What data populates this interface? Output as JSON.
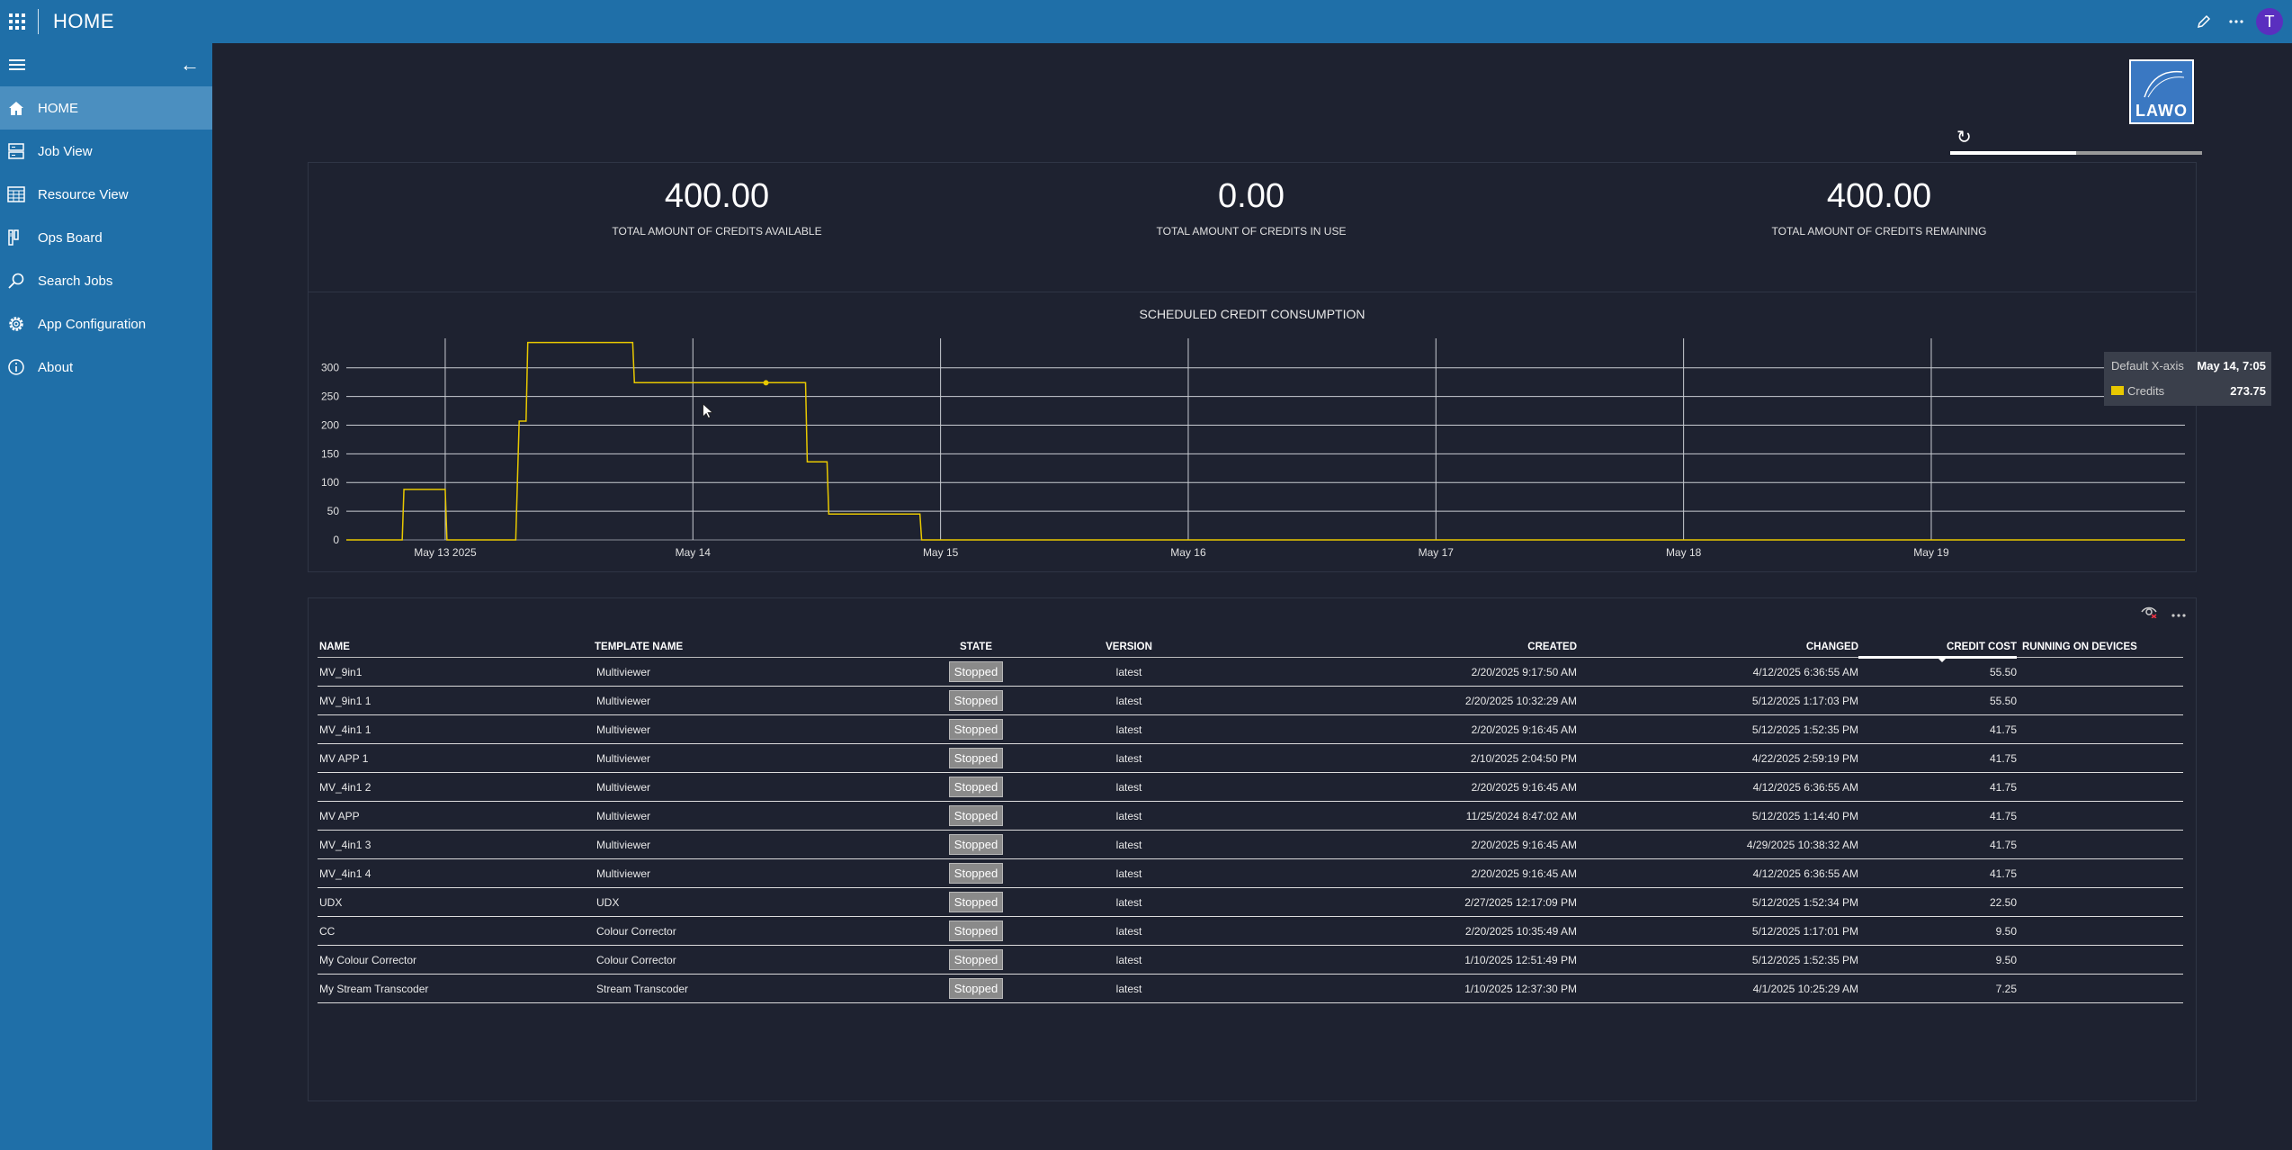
{
  "topbar": {
    "title": "HOME",
    "avatar_initial": "T"
  },
  "sidebar": {
    "items": [
      {
        "label": "HOME",
        "icon": "home-icon",
        "active": true
      },
      {
        "label": "Job View",
        "icon": "job-view-icon"
      },
      {
        "label": "Resource View",
        "icon": "calendar-grid-icon"
      },
      {
        "label": "Ops Board",
        "icon": "ops-board-icon"
      },
      {
        "label": "Search Jobs",
        "icon": "search-icon"
      },
      {
        "label": "App Configuration",
        "icon": "gear-icon"
      },
      {
        "label": "About",
        "icon": "info-icon"
      }
    ]
  },
  "brand": {
    "logo_text": "LAWO"
  },
  "loading_progress": 0.5,
  "kpis": [
    {
      "value": "400.00",
      "label": "TOTAL AMOUNT OF CREDITS AVAILABLE"
    },
    {
      "value": "0.00",
      "label": "TOTAL AMOUNT OF CREDITS IN USE"
    },
    {
      "value": "400.00",
      "label": "TOTAL AMOUNT OF CREDITS REMAINING"
    }
  ],
  "chart_data": {
    "type": "line",
    "title": "SCHEDULED CREDIT CONSUMPTION",
    "xlabel": "",
    "ylabel": "",
    "x_ticks": [
      "May 13 2025",
      "May 14",
      "May 15",
      "May 16",
      "May 17",
      "May 18",
      "May 19"
    ],
    "y_ticks": [
      0,
      50,
      100,
      150,
      200,
      250,
      300
    ],
    "xlim": [
      "2025-05-12 14:25",
      "2025-05-20 00:35"
    ],
    "ylim": [
      0,
      345
    ],
    "grid": true,
    "line_color": "#e8c800",
    "series": [
      {
        "name": "Credits",
        "x": [
          "2025-05-12 14:25",
          "2025-05-12 19:50",
          "2025-05-12 20:00",
          "2025-05-13 00:00",
          "2025-05-13 00:10",
          "2025-05-13 06:50",
          "2025-05-13 07:10",
          "2025-05-13 07:50",
          "2025-05-13 08:00",
          "2025-05-13 18:10",
          "2025-05-13 18:20",
          "2025-05-14 10:55",
          "2025-05-14 11:05",
          "2025-05-14 13:00",
          "2025-05-14 13:10",
          "2025-05-14 22:00",
          "2025-05-14 22:10",
          "2025-05-20 00:35"
        ],
        "y": [
          0,
          0,
          88,
          88,
          0,
          0,
          207,
          207,
          344,
          344,
          274,
          274,
          136,
          136,
          45,
          45,
          0,
          0
        ]
      }
    ],
    "hover_point": {
      "x": "2025-05-14 07:05",
      "y": 273.75
    },
    "tooltip": {
      "axis_label": "Default X-axis",
      "axis_value": "May 14, 7:05",
      "series_label": "Credits",
      "series_value": "273.75"
    }
  },
  "table": {
    "columns": [
      "NAME",
      "TEMPLATE NAME",
      "STATE",
      "VERSION",
      "CREATED",
      "CHANGED",
      "CREDIT COST",
      "RUNNING ON DEVICES"
    ],
    "sorted_by": "CREDIT COST",
    "rows": [
      {
        "name": "MV_9in1",
        "template": "Multiviewer",
        "state": "Stopped",
        "version": "latest",
        "created": "2/20/2025 9:17:50 AM",
        "changed": "4/12/2025 6:36:55 AM",
        "cost": "55.50",
        "devices": ""
      },
      {
        "name": "MV_9in1 1",
        "template": "Multiviewer",
        "state": "Stopped",
        "version": "latest",
        "created": "2/20/2025 10:32:29 AM",
        "changed": "5/12/2025 1:17:03 PM",
        "cost": "55.50",
        "devices": ""
      },
      {
        "name": "MV_4in1 1",
        "template": "Multiviewer",
        "state": "Stopped",
        "version": "latest",
        "created": "2/20/2025 9:16:45 AM",
        "changed": "5/12/2025 1:52:35 PM",
        "cost": "41.75",
        "devices": ""
      },
      {
        "name": "MV APP 1",
        "template": "Multiviewer",
        "state": "Stopped",
        "version": "latest",
        "created": "2/10/2025 2:04:50 PM",
        "changed": "4/22/2025 2:59:19 PM",
        "cost": "41.75",
        "devices": ""
      },
      {
        "name": "MV_4in1 2",
        "template": "Multiviewer",
        "state": "Stopped",
        "version": "latest",
        "created": "2/20/2025 9:16:45 AM",
        "changed": "4/12/2025 6:36:55 AM",
        "cost": "41.75",
        "devices": ""
      },
      {
        "name": "MV APP",
        "template": "Multiviewer",
        "state": "Stopped",
        "version": "latest",
        "created": "11/25/2024 8:47:02 AM",
        "changed": "5/12/2025 1:14:40 PM",
        "cost": "41.75",
        "devices": ""
      },
      {
        "name": "MV_4in1 3",
        "template": "Multiviewer",
        "state": "Stopped",
        "version": "latest",
        "created": "2/20/2025 9:16:45 AM",
        "changed": "4/29/2025 10:38:32 AM",
        "cost": "41.75",
        "devices": ""
      },
      {
        "name": "MV_4in1 4",
        "template": "Multiviewer",
        "state": "Stopped",
        "version": "latest",
        "created": "2/20/2025 9:16:45 AM",
        "changed": "4/12/2025 6:36:55 AM",
        "cost": "41.75",
        "devices": ""
      },
      {
        "name": "UDX",
        "template": "UDX",
        "state": "Stopped",
        "version": "latest",
        "created": "2/27/2025 12:17:09 PM",
        "changed": "5/12/2025 1:52:34 PM",
        "cost": "22.50",
        "devices": ""
      },
      {
        "name": "CC",
        "template": "Colour Corrector",
        "state": "Stopped",
        "version": "latest",
        "created": "2/20/2025 10:35:49 AM",
        "changed": "5/12/2025 1:17:01 PM",
        "cost": "9.50",
        "devices": ""
      },
      {
        "name": "My Colour Corrector",
        "template": "Colour Corrector",
        "state": "Stopped",
        "version": "latest",
        "created": "1/10/2025 12:51:49 PM",
        "changed": "5/12/2025 1:52:35 PM",
        "cost": "9.50",
        "devices": ""
      },
      {
        "name": "My Stream Transcoder",
        "template": "Stream Transcoder",
        "state": "Stopped",
        "version": "latest",
        "created": "1/10/2025 12:37:30 PM",
        "changed": "4/1/2025 10:25:29 AM",
        "cost": "7.25",
        "devices": ""
      }
    ]
  }
}
